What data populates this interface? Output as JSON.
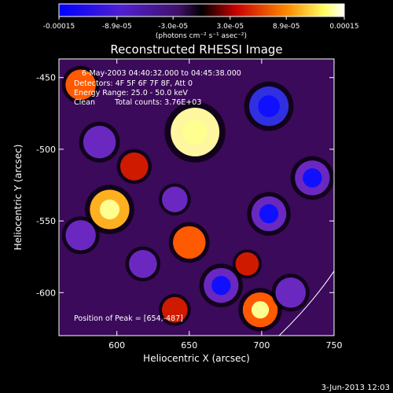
{
  "colorbar": {
    "tick_labels": [
      "-0.00015",
      "-8.9e-05",
      "-3.0e-05",
      "3.0e-05",
      "8.9e-05",
      "0.00015"
    ],
    "range": [
      -0.00015,
      0.00015
    ],
    "unit_label": "(photons cm⁻² s⁻¹ asec⁻²)",
    "colors": [
      "#0000ff",
      "#7a1fb8",
      "#000000",
      "#d40000",
      "#ff8a00",
      "#ffff80",
      "#ffffff"
    ]
  },
  "chart_data": {
    "type": "heatmap",
    "title": "Reconstructed RHESSI Image",
    "xlabel": "Heliocentric X (arcsec)",
    "ylabel": "Heliocentric Y (arcsec)",
    "xlim": [
      560,
      750
    ],
    "ylim": [
      -630,
      -437
    ],
    "x_ticks": [
      600,
      650,
      700,
      750
    ],
    "y_ticks": [
      -450,
      -500,
      -550,
      -600
    ],
    "value_range": [
      -0.00015,
      0.00015
    ],
    "peak": {
      "x": 654,
      "y": -487
    },
    "features": [
      {
        "x": 654,
        "y": -488,
        "value": 0.00015
      },
      {
        "x": 595,
        "y": -542,
        "value": 0.00011
      },
      {
        "x": 699,
        "y": -612,
        "value": 9e-05
      },
      {
        "x": 650,
        "y": -565,
        "value": 8e-05
      },
      {
        "x": 612,
        "y": -512,
        "value": 6e-05
      },
      {
        "x": 575,
        "y": -455,
        "value": 7e-05
      },
      {
        "x": 640,
        "y": -612,
        "value": 5e-05
      },
      {
        "x": 690,
        "y": -580,
        "value": 4e-05
      },
      {
        "x": 705,
        "y": -470,
        "value": -0.00011
      },
      {
        "x": 735,
        "y": -520,
        "value": -9e-05
      },
      {
        "x": 705,
        "y": -545,
        "value": -9e-05
      },
      {
        "x": 575,
        "y": -560,
        "value": -7e-05
      },
      {
        "x": 588,
        "y": -495,
        "value": -8e-05
      },
      {
        "x": 618,
        "y": -580,
        "value": -6e-05
      },
      {
        "x": 672,
        "y": -595,
        "value": -9e-05
      },
      {
        "x": 720,
        "y": -600,
        "value": -7e-05
      },
      {
        "x": 640,
        "y": -535,
        "value": -5e-05
      }
    ],
    "annotations": {
      "time_range": "6-May-2003 04:40:32.000 to 04:45:38.000",
      "detectors": "Detectors: 4F 5F 6F 7F 8F, Att 0",
      "energy": "Energy Range: 25.0 - 50.0 keV",
      "clean": "Clean",
      "counts": "Total counts: 3.76E+03",
      "peak_label": "Position of Peak = [654,-487]"
    },
    "limb_arc": true
  },
  "footer": {
    "timestamp": "3-Jun-2013 12:03"
  }
}
